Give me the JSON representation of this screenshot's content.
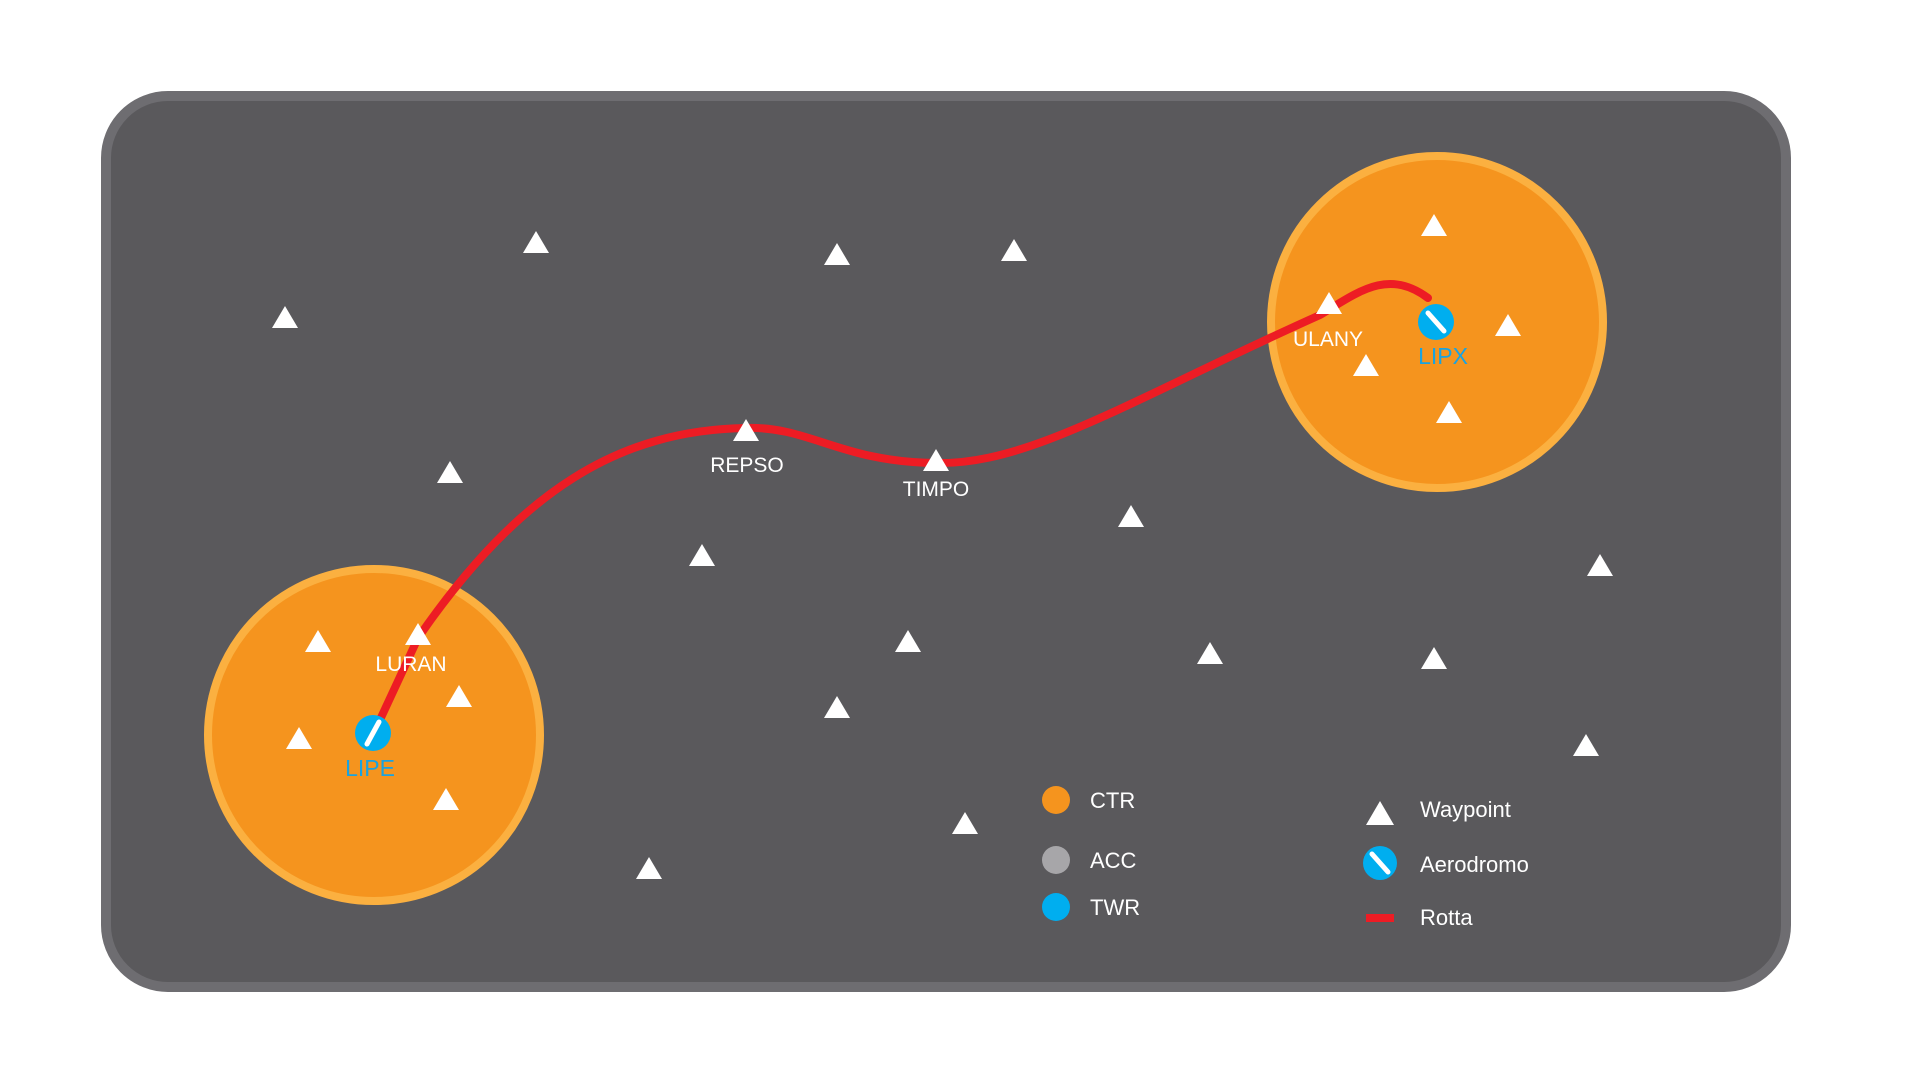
{
  "colors": {
    "background": "#ffffff",
    "panel": "#5a595c",
    "panel_border": "#6e6d71",
    "ctr": "#f5941e",
    "ctr_ring": "#fbb040",
    "acc": "#a7a6a9",
    "twr": "#00aeef",
    "route": "#ed1c24",
    "waypoint": "#ffffff"
  },
  "map": {
    "ctr_zones": [
      "ctr-lipe",
      "ctr-lipx"
    ],
    "route": {
      "legend_label": "Rotta",
      "waypoints_on_route": [
        "LURAN",
        "REPSO",
        "TIMPO",
        "ULANY"
      ]
    },
    "waypoint_labels": {
      "luran": "LURAN",
      "repso": "REPSO",
      "timpo": "TIMPO",
      "ulany": "ULANY"
    },
    "aerodromes": {
      "lipe": "LIPE",
      "lipx": "LIPX"
    }
  },
  "legend": {
    "ctr": "CTR",
    "acc": "ACC",
    "twr": "TWR",
    "waypoint": "Waypoint",
    "aerodromo": "Aerodromo",
    "rotta": "Rotta"
  }
}
